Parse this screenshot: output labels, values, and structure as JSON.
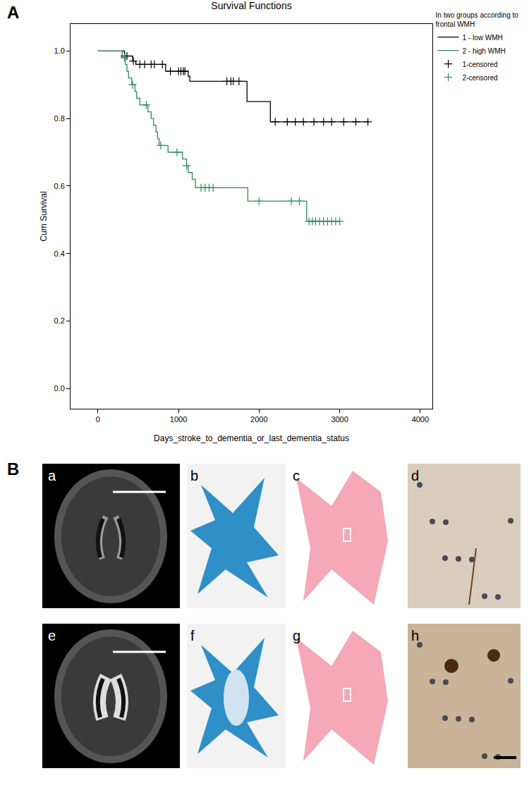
{
  "figure": {
    "panel_labels": [
      "A",
      "B"
    ],
    "image_labels": [
      [
        "a",
        "b",
        "c",
        "d"
      ],
      [
        "e",
        "f",
        "g",
        "h"
      ]
    ]
  },
  "chart_data": {
    "type": "line",
    "title": "Survival Functions",
    "x_label": "Days_stroke_to_dementia_or_last_dementia_status",
    "y_label": "Cum Survival",
    "legend_title": [
      "In two groups according to",
      "frontal WMH"
    ],
    "legend": "upper right",
    "grid": false,
    "xlim": [
      -340,
      4150
    ],
    "xticks": [
      0,
      1000,
      2000,
      3000,
      4000
    ],
    "ylim": [
      -0.06,
      1.08
    ],
    "yticks": [
      {
        "value": 0,
        "label": "0.0"
      },
      {
        "value": 0.2,
        "label": "0.2"
      },
      {
        "value": 0.4,
        "label": "0.4"
      },
      {
        "value": 0.6,
        "label": "0.6"
      },
      {
        "value": 0.8,
        "label": "0.8"
      },
      {
        "value": 1.0,
        "label": "1.0"
      }
    ],
    "series": [
      {
        "name": "1 - low WMH",
        "color": "#000000",
        "line_style": "step",
        "x": [
          0,
          330,
          430,
          470,
          840,
          1120,
          1140,
          1850,
          2140,
          3360
        ],
        "values": [
          1.0,
          0.985,
          0.97,
          0.96,
          0.94,
          0.925,
          0.91,
          0.85,
          0.79,
          0.79
        ]
      },
      {
        "name": "2 - high WMH",
        "color": "#2e8b57",
        "line_style": "step",
        "x": [
          0,
          300,
          340,
          360,
          380,
          420,
          460,
          480,
          520,
          620,
          660,
          690,
          720,
          740,
          760,
          870,
          1050,
          1100,
          1120,
          1170,
          1210,
          1860,
          2590,
          3000
        ],
        "values": [
          1.0,
          0.98,
          0.96,
          0.94,
          0.92,
          0.9,
          0.88,
          0.86,
          0.84,
          0.82,
          0.8,
          0.78,
          0.76,
          0.74,
          0.72,
          0.7,
          0.68,
          0.66,
          0.64,
          0.62,
          0.595,
          0.555,
          0.495,
          0.495
        ]
      },
      {
        "name": "1-censored",
        "color": "#000000",
        "marker": "cross",
        "x": [
          330,
          360,
          440,
          520,
          580,
          660,
          700,
          800,
          900,
          1000,
          1030,
          1060,
          1080,
          1600,
          1650,
          1680,
          1750,
          2200,
          2350,
          2450,
          2550,
          2680,
          2800,
          2900,
          3050,
          3200,
          3350
        ],
        "values": [
          0.985,
          0.985,
          0.97,
          0.96,
          0.96,
          0.96,
          0.96,
          0.96,
          0.94,
          0.94,
          0.94,
          0.94,
          0.94,
          0.91,
          0.91,
          0.91,
          0.91,
          0.79,
          0.79,
          0.79,
          0.79,
          0.79,
          0.79,
          0.79,
          0.79,
          0.79,
          0.79
        ]
      },
      {
        "name": "2-censored",
        "color": "#2e8b57",
        "marker": "cross",
        "x": [
          330,
          430,
          600,
          780,
          980,
          1100,
          1280,
          1330,
          1380,
          1430,
          2000,
          2400,
          2500,
          2620,
          2660,
          2700,
          2750,
          2800,
          2850,
          2900,
          2950,
          3000
        ],
        "values": [
          0.98,
          0.9,
          0.84,
          0.72,
          0.7,
          0.66,
          0.595,
          0.595,
          0.595,
          0.595,
          0.555,
          0.555,
          0.555,
          0.495,
          0.495,
          0.495,
          0.495,
          0.495,
          0.495,
          0.495,
          0.495,
          0.495
        ]
      }
    ]
  }
}
